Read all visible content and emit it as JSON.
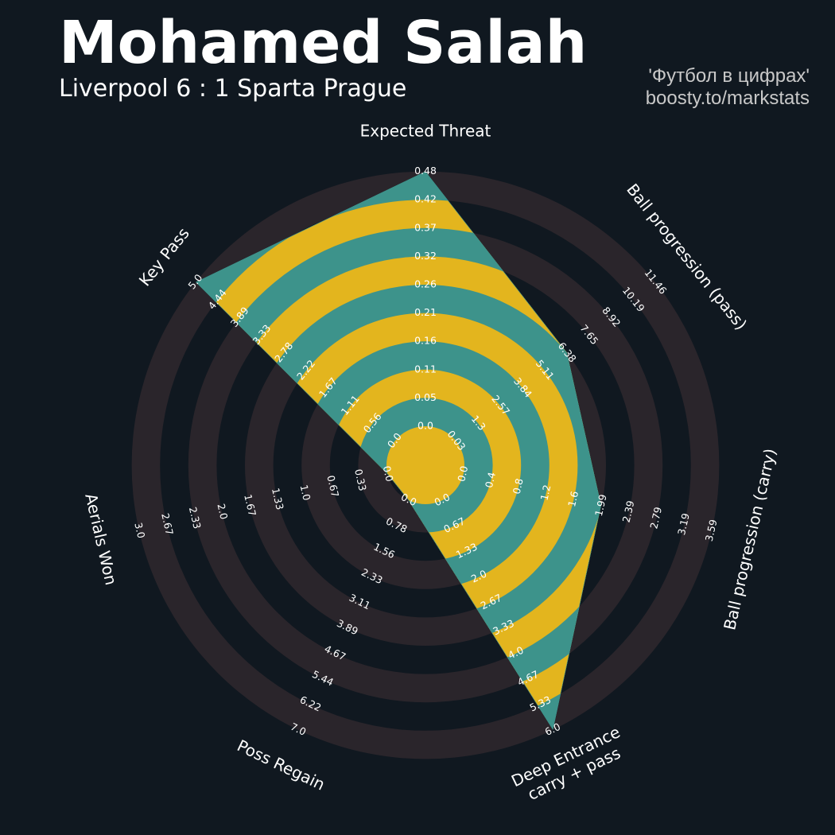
{
  "header": {
    "title": "Mohamed Salah",
    "subtitle": "Liverpool 6 : 1 Sparta Prague",
    "credit_line1": "'Футбол в цифрах'",
    "credit_line2": "boosty.to/markstats"
  },
  "colors": {
    "background": "#101820",
    "ring_dark": "#2a252b",
    "fill_teal": "#3d938b",
    "fill_gold": "#e3b51e",
    "text": "#ffffff"
  },
  "chart_data": {
    "type": "radar",
    "title": "Mohamed Salah",
    "subtitle": "Liverpool 6 : 1 Sparta Prague",
    "player": "Mohamed Salah",
    "params": [
      {
        "label": "Expected Threat",
        "min": 0.0,
        "max": 0.48,
        "value": 0.48,
        "ticks": [
          "0.0",
          "0.05",
          "0.11",
          "0.16",
          "0.21",
          "0.26",
          "0.32",
          "0.37",
          "0.42",
          "0.48"
        ]
      },
      {
        "label": "Ball progression (pass)",
        "min": 0.0,
        "max": 11.46,
        "value": 6.38,
        "ticks": [
          "0.03",
          "1.3",
          "2.57",
          "3.84",
          "5.11",
          "6.38",
          "7.65",
          "8.92",
          "10.19",
          "11.46"
        ]
      },
      {
        "label": "Ball progression (carry)",
        "min": 0.0,
        "max": 3.59,
        "value": 1.99,
        "ticks": [
          "0.0",
          "0.4",
          "0.8",
          "1.2",
          "1.6",
          "1.99",
          "2.39",
          "2.79",
          "3.19",
          "3.59"
        ]
      },
      {
        "label": "Deep Entrance\ncarry + pass",
        "min": 0.0,
        "max": 6.0,
        "value": 6.0,
        "ticks": [
          "0.0",
          "0.67",
          "1.33",
          "2.0",
          "2.67",
          "3.33",
          "4.0",
          "4.67",
          "5.33",
          "6.0"
        ]
      },
      {
        "label": "Poss Regain",
        "min": 0.0,
        "max": 7.0,
        "value": 0.0,
        "ticks": [
          "0.0",
          "0.78",
          "1.56",
          "2.33",
          "3.11",
          "3.89",
          "4.67",
          "5.44",
          "6.22",
          "7.0"
        ]
      },
      {
        "label": "Aerials Won",
        "min": 0.0,
        "max": 3.0,
        "value": 0.0,
        "ticks": [
          "0.0",
          "0.33",
          "0.67",
          "1.0",
          "1.33",
          "1.67",
          "2.0",
          "2.33",
          "2.67",
          "3.0"
        ]
      },
      {
        "label": "Key Pass",
        "min": 0.0,
        "max": 5.0,
        "value": 5.0,
        "ticks": [
          "0.0",
          "0.56",
          "1.11",
          "1.67",
          "2.22",
          "2.78",
          "3.33",
          "3.89",
          "4.44",
          "5.0"
        ]
      }
    ]
  }
}
